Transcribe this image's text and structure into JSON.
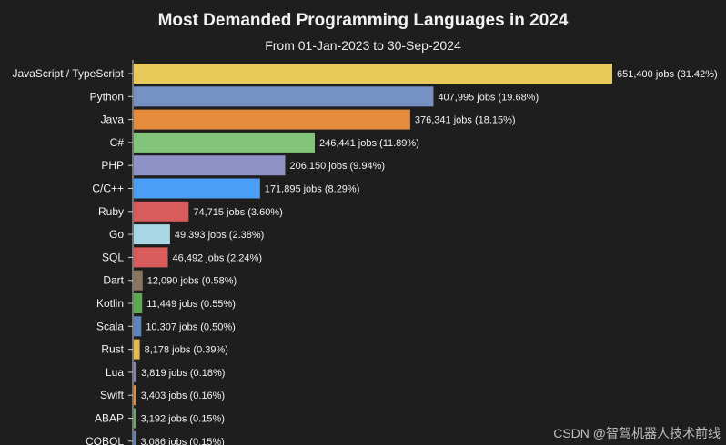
{
  "chart_data": {
    "type": "bar",
    "orientation": "horizontal",
    "title": "Most Demanded Programming Languages in 2024",
    "subtitle": "From 01-Jan-2023 to 30-Sep-2024",
    "categories": [
      "JavaScript / TypeScript",
      "Python",
      "Java",
      "C#",
      "PHP",
      "C/C++",
      "Ruby",
      "Go",
      "SQL",
      "Dart",
      "Kotlin",
      "Scala",
      "Rust",
      "Lua",
      "Swift",
      "ABAP",
      "COBOL"
    ],
    "values": [
      651400,
      407995,
      376341,
      246441,
      206150,
      171895,
      74715,
      49393,
      46492,
      12090,
      11449,
      10307,
      8178,
      3819,
      3403,
      3192,
      3086
    ],
    "data_labels": [
      "651,400 jobs (31.42%)",
      "407,995 jobs (19.68%)",
      "376,341 jobs (18.15%)",
      "246,441 jobs (11.89%)",
      "206,150 jobs (9.94%)",
      "171,895 jobs (8.29%)",
      "74,715 jobs (3.60%)",
      "49,393 jobs (2.38%)",
      "46,492 jobs (2.24%)",
      "12,090 jobs (0.58%)",
      "11,449 jobs (0.55%)",
      "10,307 jobs (0.50%)",
      "8,178 jobs (0.39%)",
      "3,819 jobs (0.18%)",
      "3,403 jobs (0.16%)",
      "3,192 jobs (0.15%)",
      "3,086 jobs (0.15%)"
    ],
    "colors": [
      "#e8c95a",
      "#7691c4",
      "#e58b3c",
      "#83c47b",
      "#8f92c6",
      "#4a9ef5",
      "#d85c5b",
      "#a8d8e6",
      "#d85c5b",
      "#8a7560",
      "#5cab4f",
      "#5f85c0",
      "#e8b84a",
      "#8d7fb3",
      "#e58b3c",
      "#6aa567",
      "#5f85c0"
    ],
    "xlim": [
      0,
      651400
    ],
    "xlabel": "",
    "ylabel": "",
    "grid": false,
    "legend": "none"
  },
  "watermark": "CSDN @智驾机器人技术前线",
  "theme": {
    "background": "#1e1e1f",
    "text": "#f2f2f2",
    "axis": "#cfcfcf"
  }
}
